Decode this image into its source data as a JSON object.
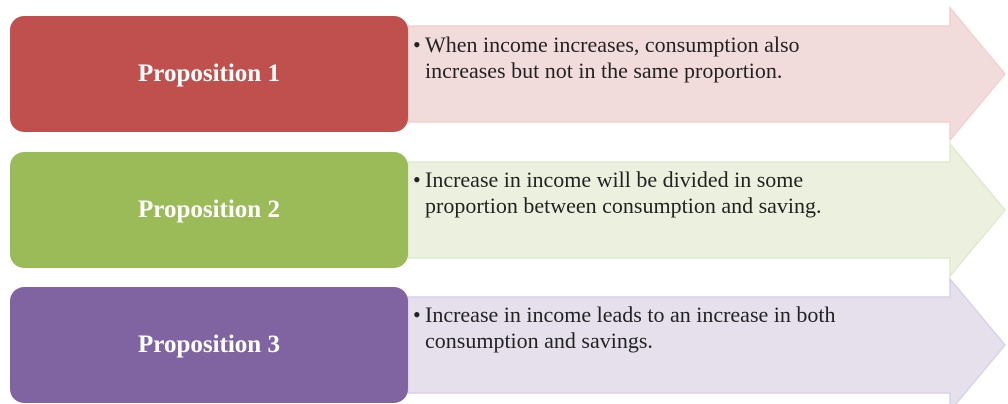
{
  "items": [
    {
      "label": "Proposition 1",
      "lines": [
        "When income increases, consumption also",
        "increases but not in the same proportion."
      ]
    },
    {
      "label": "Proposition 2",
      "lines": [
        "Increase in income will be divided in some",
        "proportion between consumption and saving."
      ]
    },
    {
      "label": "Proposition 3",
      "lines": [
        "Increase in income leads to an increase in both",
        "consumption and savings."
      ]
    }
  ]
}
